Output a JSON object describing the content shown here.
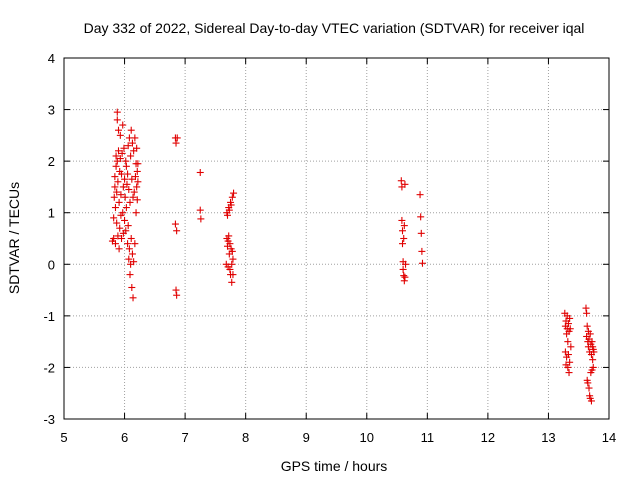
{
  "chart_data": {
    "type": "scatter",
    "title": "Day 332 of 2022, Sidereal Day-to-day VTEC variation (SDTVAR) for receiver iqal",
    "xlabel": "GPS time / hours",
    "ylabel": "SDTVAR / TECUs",
    "xlim": [
      5,
      14
    ],
    "ylim": [
      -3,
      4
    ],
    "xticks": [
      5,
      6,
      7,
      8,
      9,
      10,
      11,
      12,
      13,
      14
    ],
    "yticks": [
      -3,
      -2,
      -1,
      0,
      1,
      2,
      3,
      4
    ],
    "grid": true,
    "marker": "+",
    "color": "#e00000",
    "series": [
      {
        "name": "iqal",
        "points": [
          [
            5.8,
            0.45
          ],
          [
            5.82,
            0.5
          ],
          [
            5.82,
            0.9
          ],
          [
            5.83,
            1.3
          ],
          [
            5.84,
            1.5
          ],
          [
            5.84,
            1.7
          ],
          [
            5.85,
            0.4
          ],
          [
            5.85,
            1.1
          ],
          [
            5.86,
            1.9
          ],
          [
            5.86,
            2.1
          ],
          [
            5.87,
            0.8
          ],
          [
            5.87,
            1.4
          ],
          [
            5.88,
            2.0
          ],
          [
            5.88,
            2.95
          ],
          [
            5.88,
            2.8
          ],
          [
            5.89,
            0.55
          ],
          [
            5.89,
            1.6
          ],
          [
            5.9,
            2.2
          ],
          [
            5.9,
            2.6
          ],
          [
            5.91,
            0.3
          ],
          [
            5.91,
            1.2
          ],
          [
            5.92,
            0.7
          ],
          [
            5.92,
            1.8
          ],
          [
            5.93,
            2.05
          ],
          [
            5.93,
            2.5
          ],
          [
            5.94,
            0.95
          ],
          [
            5.94,
            1.35
          ],
          [
            5.95,
            0.5
          ],
          [
            5.95,
            1.75
          ],
          [
            5.96,
            2.15
          ],
          [
            5.97,
            1.0
          ],
          [
            5.97,
            2.7
          ],
          [
            5.98,
            0.6
          ],
          [
            5.98,
            1.5
          ],
          [
            5.99,
            2.25
          ],
          [
            6.0,
            0.85
          ],
          [
            6.0,
            1.65
          ],
          [
            6.01,
            1.3
          ],
          [
            6.02,
            0.65
          ],
          [
            6.02,
            2.0
          ],
          [
            6.03,
            1.9
          ],
          [
            6.03,
            1.1
          ],
          [
            6.04,
            1.55
          ],
          [
            6.05,
            0.4
          ],
          [
            6.05,
            1.75
          ],
          [
            6.06,
            0.75
          ],
          [
            6.06,
            2.3
          ],
          [
            6.07,
            0.1
          ],
          [
            6.07,
            1.45
          ],
          [
            6.08,
            0.3
          ],
          [
            6.08,
            2.45
          ],
          [
            6.09,
            -0.2
          ],
          [
            6.09,
            1.2
          ],
          [
            6.1,
            0.0
          ],
          [
            6.1,
            2.1
          ],
          [
            6.11,
            0.5
          ],
          [
            6.11,
            2.6
          ],
          [
            6.12,
            -0.45
          ],
          [
            6.12,
            1.65
          ],
          [
            6.13,
            0.2
          ],
          [
            6.13,
            2.35
          ],
          [
            6.14,
            -0.65
          ],
          [
            6.14,
            1.3
          ],
          [
            6.15,
            0.05
          ],
          [
            6.15,
            2.2
          ],
          [
            6.16,
            1.4
          ],
          [
            6.17,
            0.4
          ],
          [
            6.17,
            2.45
          ],
          [
            6.18,
            1.7
          ],
          [
            6.19,
            1.0
          ],
          [
            6.19,
            1.95
          ],
          [
            6.2,
            1.5
          ],
          [
            6.2,
            2.25
          ],
          [
            6.21,
            1.8
          ],
          [
            6.21,
            1.25
          ],
          [
            6.22,
            1.6
          ],
          [
            6.22,
            1.95
          ],
          [
            6.84,
            2.45
          ],
          [
            6.84,
            0.78
          ],
          [
            6.85,
            2.35
          ],
          [
            6.85,
            -0.5
          ],
          [
            6.86,
            0.65
          ],
          [
            6.86,
            -0.6
          ],
          [
            6.87,
            2.45
          ],
          [
            7.25,
            1.78
          ],
          [
            7.25,
            1.05
          ],
          [
            7.26,
            0.88
          ],
          [
            7.68,
            0.0
          ],
          [
            7.69,
            0.5
          ],
          [
            7.69,
            1.0
          ],
          [
            7.7,
            0.35
          ],
          [
            7.7,
            0.95
          ],
          [
            7.71,
            -0.05
          ],
          [
            7.71,
            0.45
          ],
          [
            7.72,
            1.1
          ],
          [
            7.72,
            0.55
          ],
          [
            7.73,
            0.2
          ],
          [
            7.73,
            1.05
          ],
          [
            7.74,
            -0.1
          ],
          [
            7.74,
            0.4
          ],
          [
            7.75,
            1.2
          ],
          [
            7.75,
            -0.2
          ],
          [
            7.76,
            0.3
          ],
          [
            7.76,
            1.15
          ],
          [
            7.77,
            -0.35
          ],
          [
            7.77,
            0.0
          ],
          [
            7.78,
            0.25
          ],
          [
            7.78,
            1.3
          ],
          [
            7.79,
            -0.2
          ],
          [
            7.79,
            0.1
          ],
          [
            7.8,
            1.38
          ],
          [
            10.57,
            1.62
          ],
          [
            10.58,
            1.5
          ],
          [
            10.58,
            0.85
          ],
          [
            10.59,
            0.65
          ],
          [
            10.59,
            0.4
          ],
          [
            10.6,
            0.05
          ],
          [
            10.6,
            -0.1
          ],
          [
            10.61,
            -0.22
          ],
          [
            10.61,
            0.5
          ],
          [
            10.62,
            -0.32
          ],
          [
            10.62,
            0.75
          ],
          [
            10.63,
            1.55
          ],
          [
            10.63,
            -0.25
          ],
          [
            10.64,
            0.0
          ],
          [
            10.88,
            1.35
          ],
          [
            10.89,
            0.92
          ],
          [
            10.9,
            0.6
          ],
          [
            10.91,
            0.25
          ],
          [
            10.92,
            0.02
          ],
          [
            13.27,
            -0.95
          ],
          [
            13.28,
            -1.2
          ],
          [
            13.28,
            -1.7
          ],
          [
            13.29,
            -1.1
          ],
          [
            13.29,
            -1.95
          ],
          [
            13.3,
            -1.35
          ],
          [
            13.3,
            -1.8
          ],
          [
            13.31,
            -1.0
          ],
          [
            13.31,
            -1.25
          ],
          [
            13.32,
            -2.0
          ],
          [
            13.32,
            -1.5
          ],
          [
            13.33,
            -1.15
          ],
          [
            13.33,
            -1.75
          ],
          [
            13.34,
            -1.3
          ],
          [
            13.34,
            -2.1
          ],
          [
            13.35,
            -1.05
          ],
          [
            13.35,
            -1.9
          ],
          [
            13.36,
            -1.25
          ],
          [
            13.37,
            -1.6
          ],
          [
            13.62,
            -0.85
          ],
          [
            13.63,
            -0.95
          ],
          [
            13.63,
            -1.4
          ],
          [
            13.64,
            -2.25
          ],
          [
            13.64,
            -1.2
          ],
          [
            13.65,
            -1.5
          ],
          [
            13.65,
            -2.3
          ],
          [
            13.66,
            -1.3
          ],
          [
            13.66,
            -1.6
          ],
          [
            13.67,
            -2.4
          ],
          [
            13.67,
            -1.45
          ],
          [
            13.68,
            -1.7
          ],
          [
            13.68,
            -2.55
          ],
          [
            13.69,
            -1.35
          ],
          [
            13.69,
            -2.6
          ],
          [
            13.7,
            -1.55
          ],
          [
            13.7,
            -2.1
          ],
          [
            13.71,
            -1.75
          ],
          [
            13.71,
            -2.65
          ],
          [
            13.72,
            -1.5
          ],
          [
            13.72,
            -2.05
          ],
          [
            13.73,
            -1.6
          ],
          [
            13.73,
            -1.85
          ],
          [
            13.74,
            -1.65
          ],
          [
            13.74,
            -2.0
          ],
          [
            13.75,
            -1.7
          ]
        ]
      }
    ]
  }
}
